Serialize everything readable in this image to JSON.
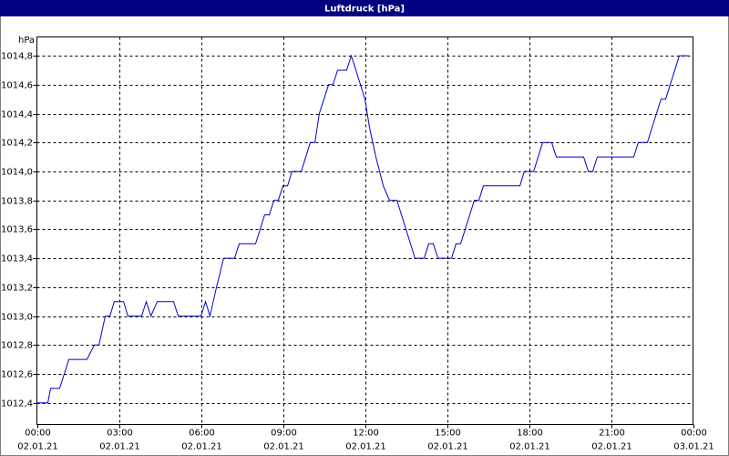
{
  "chart_data": {
    "type": "line",
    "title": "Luftdruck [hPa]",
    "y_unit": "hPa",
    "x": [
      0,
      0.4,
      0.5,
      0.83,
      1.17,
      1.83,
      2.1,
      2.27,
      2.5,
      2.67,
      2.83,
      3.17,
      3.33,
      3.83,
      4,
      4.17,
      4.4,
      5,
      5.17,
      6,
      6.17,
      6.33,
      6.57,
      6.83,
      7.23,
      7.4,
      8,
      8.33,
      8.5,
      8.67,
      8.83,
      9,
      9.17,
      9.33,
      9.67,
      10,
      10.17,
      10.33,
      10.67,
      10.83,
      11,
      11.33,
      11.5,
      11.67,
      12,
      12.17,
      12.4,
      12.67,
      12.9,
      13.17,
      13.5,
      13.83,
      14.17,
      14.33,
      14.5,
      14.67,
      15.17,
      15.33,
      15.5,
      16,
      16.17,
      16.33,
      17.67,
      17.83,
      18.17,
      18.5,
      18.83,
      19,
      20,
      20.17,
      20.33,
      20.5,
      21.83,
      22,
      22.33,
      22.83,
      23,
      23.5,
      23.83
    ],
    "series": [
      {
        "color": "#0000cc",
        "values": [
          1012.4,
          1012.4,
          1012.5,
          1012.5,
          1012.7,
          1012.7,
          1012.8,
          1012.8,
          1013.0,
          1013.0,
          1013.1,
          1013.1,
          1013.0,
          1013.0,
          1013.1,
          1013.0,
          1013.1,
          1013.1,
          1013.0,
          1013.0,
          1013.1,
          1013.0,
          1013.2,
          1013.4,
          1013.4,
          1013.5,
          1013.5,
          1013.7,
          1013.7,
          1013.8,
          1013.8,
          1013.9,
          1013.9,
          1014.0,
          1014.0,
          1014.2,
          1014.2,
          1014.4,
          1014.6,
          1014.6,
          1014.7,
          1014.7,
          1014.8,
          1014.7,
          1014.5,
          1014.3,
          1014.1,
          1013.9,
          1013.8,
          1013.8,
          1013.6,
          1013.4,
          1013.4,
          1013.5,
          1013.5,
          1013.4,
          1013.4,
          1013.5,
          1013.5,
          1013.8,
          1013.8,
          1013.9,
          1013.9,
          1014.0,
          1014.0,
          1014.2,
          1014.2,
          1014.1,
          1014.1,
          1014.0,
          1014.0,
          1014.1,
          1014.1,
          1014.2,
          1014.2,
          1014.5,
          1014.5,
          1014.8,
          1014.8
        ]
      }
    ],
    "xlim": [
      0,
      24
    ],
    "xticks": [
      {
        "value": 0,
        "label": "00:00"
      },
      {
        "value": 3,
        "label": "03:00"
      },
      {
        "value": 6,
        "label": "06:00"
      },
      {
        "value": 9,
        "label": "09:00"
      },
      {
        "value": 12,
        "label": "12:00"
      },
      {
        "value": 15,
        "label": "15:00"
      },
      {
        "value": 18,
        "label": "18:00"
      },
      {
        "value": 21,
        "label": "21:00"
      },
      {
        "value": 24,
        "label": "00:00"
      }
    ],
    "xtick_dates": [
      "02.01.21",
      "02.01.21",
      "02.01.21",
      "02.01.21",
      "02.01.21",
      "02.01.21",
      "02.01.21",
      "02.01.21",
      "03.01.21"
    ],
    "ylim": [
      1012.25,
      1014.93
    ],
    "yticks": [
      {
        "value": 1012.4,
        "label": "1012,4"
      },
      {
        "value": 1012.6,
        "label": "1012,6"
      },
      {
        "value": 1012.8,
        "label": "1012,8"
      },
      {
        "value": 1013.0,
        "label": "1013,0"
      },
      {
        "value": 1013.2,
        "label": "1013,2"
      },
      {
        "value": 1013.4,
        "label": "1013,4"
      },
      {
        "value": 1013.6,
        "label": "1013,6"
      },
      {
        "value": 1013.8,
        "label": "1013,8"
      },
      {
        "value": 1014.0,
        "label": "1014,0"
      },
      {
        "value": 1014.2,
        "label": "1014,2"
      },
      {
        "value": 1014.4,
        "label": "1014,4"
      },
      {
        "value": 1014.6,
        "label": "1014,6"
      },
      {
        "value": 1014.8,
        "label": "1014,8"
      }
    ],
    "grid": true
  }
}
